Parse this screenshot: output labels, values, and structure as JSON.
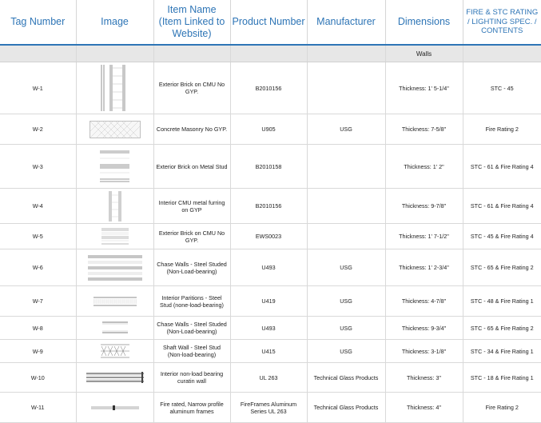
{
  "headers": {
    "tag": "Tag Number",
    "image": "Image",
    "item": "Item Name (Item Linked to Website)",
    "product": "Product Number",
    "manufacturer": "Manufacturer",
    "dimensions": "Dimensions",
    "rating": "FIRE & STC RATING / LIGHTING SPEC. / CONTENTS"
  },
  "section": {
    "label": "Walls"
  },
  "rows": [
    {
      "tag": "W-1",
      "image_icon": "wall-section-brick-cmu-icon",
      "item": "Exterior Brick on CMU No GYP.",
      "product": "B2010156",
      "manufacturer": "",
      "dimensions": "Thickness: 1' 5-1/4\"",
      "rating": "STC - 45"
    },
    {
      "tag": "W-2",
      "image_icon": "wall-section-concrete-masonry-icon",
      "item": "Concrete Masonry No GYP.",
      "product": "U905",
      "manufacturer": "USG",
      "dimensions": "Thickness: 7-5/8\"",
      "rating": "Fire Rating 2"
    },
    {
      "tag": "W-3",
      "image_icon": "wall-section-brick-metal-stud-icon",
      "item": "Exterior Brick on Metal Stud",
      "product": "B2010158",
      "manufacturer": "",
      "dimensions": "Thickness: 1' 2\"",
      "rating": "STC - 61 & Fire Rating 4"
    },
    {
      "tag": "W-4",
      "image_icon": "wall-section-interior-cmu-icon",
      "item": "Interior CMU metal furring on GYP",
      "product": "B2010156",
      "manufacturer": "",
      "dimensions": "Thickness: 9-7/8\"",
      "rating": "STC - 61 & Fire Rating 4"
    },
    {
      "tag": "W-5",
      "image_icon": "wall-section-brick-cmu-icon",
      "item": "Exterior Brick on CMU No GYP.",
      "product": "EWS0023",
      "manufacturer": "",
      "dimensions": "Thickness: 1' 7-1/2\"",
      "rating": "STC - 45 & Fire Rating 4"
    },
    {
      "tag": "W-6",
      "image_icon": "wall-section-chase-wall-icon",
      "item": "Chase Walls - Steel Studed (Non-Load-bearing)",
      "product": "U493",
      "manufacturer": "USG",
      "dimensions": "Thickness: 1' 2-3/4\"",
      "rating": "STC - 65 & Fire Rating 2"
    },
    {
      "tag": "W-7",
      "image_icon": "wall-section-interior-partition-icon",
      "item": "Interior Paritions - Steel Stud (none-load-bearing)",
      "product": "U419",
      "manufacturer": "USG",
      "dimensions": "Thickness: 4-7/8\"",
      "rating": "STC - 48 & Fire Rating 1"
    },
    {
      "tag": "W-8",
      "image_icon": "wall-section-chase-wall-icon",
      "item": "Chase Walls - Steel Studed (Non-Load-bearing)",
      "product": "U493",
      "manufacturer": "USG",
      "dimensions": "Thickness: 9-3/4\"",
      "rating": "STC - 65 & Fire Rating 2"
    },
    {
      "tag": "W-9",
      "image_icon": "wall-section-shaft-wall-icon",
      "item": "Shaft Wall - Steel Stud (Non-load-bearing)",
      "product": "U415",
      "manufacturer": "USG",
      "dimensions": "Thickness: 3-1/8\"",
      "rating": "STC - 34 & Fire Rating 1"
    },
    {
      "tag": "W-10",
      "image_icon": "wall-section-curtain-wall-icon",
      "item": "Interior non-load bearing curatin wall",
      "product": "UL 263",
      "manufacturer": "Technical Glass Products",
      "dimensions": "Thickness: 3\"",
      "rating": "STC - 18 & Fire Rating 1"
    },
    {
      "tag": "W-11",
      "image_icon": "wall-section-aluminum-frame-icon",
      "item": "Fire rated, Narrow profile aluminum frames",
      "product": "FireFrames Aluminum Series UL 263",
      "manufacturer": "Technical Glass Products",
      "dimensions": "Thickness: 4\"",
      "rating": "Fire Rating 2"
    }
  ]
}
